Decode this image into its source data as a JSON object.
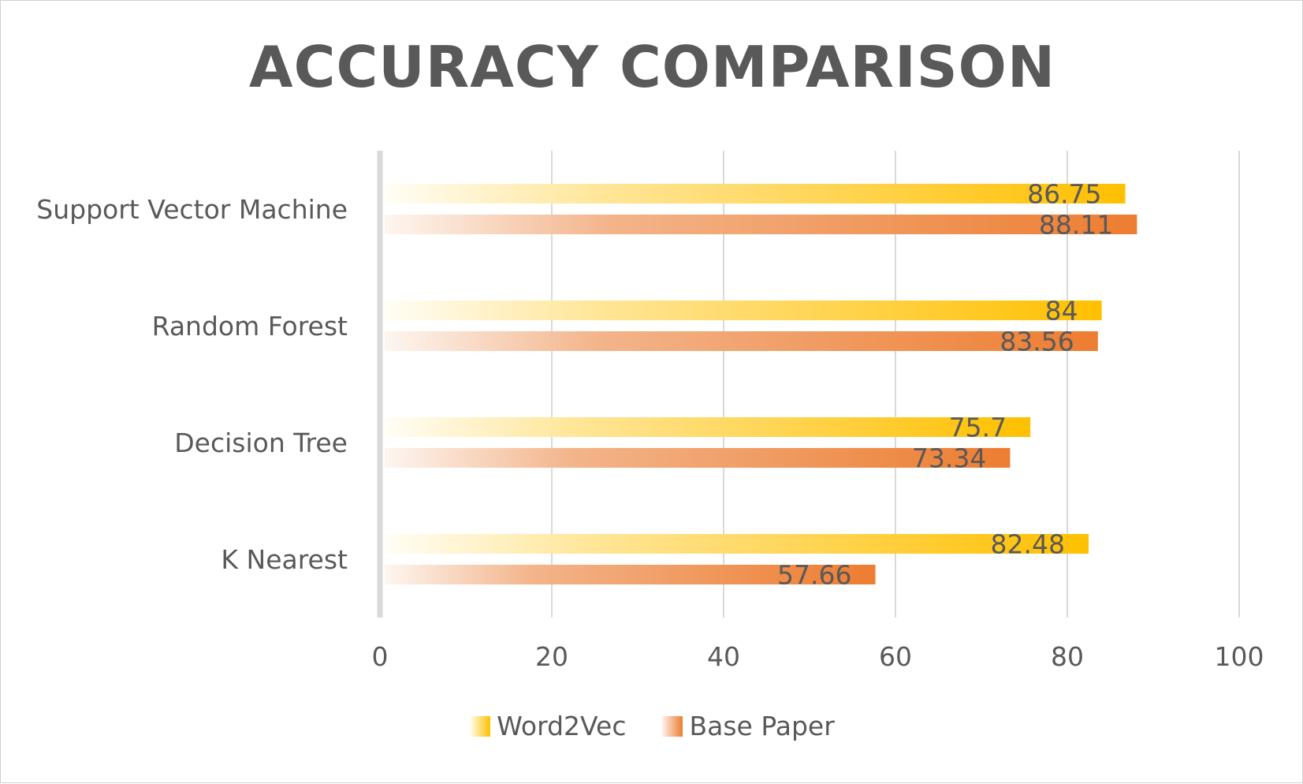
{
  "chart_data": {
    "type": "bar",
    "orientation": "horizontal",
    "title": "ACCURACY COMPARISON",
    "categories": [
      "Support Vector Machine",
      "Random Forest",
      "Decision Tree",
      "K Nearest"
    ],
    "series": [
      {
        "name": "Word2Vec",
        "values": [
          86.75,
          84,
          75.7,
          82.48
        ],
        "labels": [
          "86.75",
          "84",
          "75.7",
          "82.48"
        ],
        "color": "#FFC000"
      },
      {
        "name": "Base Paper",
        "values": [
          88.11,
          83.56,
          73.34,
          57.66
        ],
        "labels": [
          "88.11",
          "83.56",
          "73.34",
          "57.66"
        ],
        "color": "#ED7D31"
      }
    ],
    "xlim": [
      0,
      100
    ],
    "xticks": [
      "0",
      "20",
      "40",
      "60",
      "80",
      "100"
    ],
    "xlabel": "",
    "ylabel": "",
    "grid": true,
    "legend": "bottom",
    "data_labels": "inside-end"
  }
}
